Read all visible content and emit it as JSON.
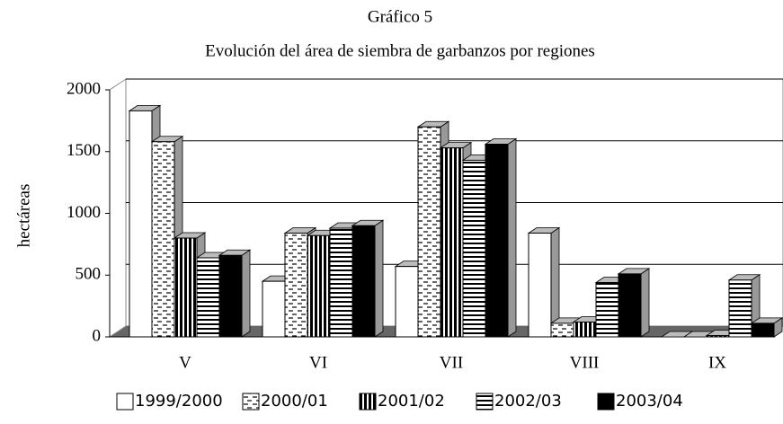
{
  "chart_data": {
    "type": "bar3d",
    "title": "Gráfico 5",
    "subtitle": "Evolución del área de siembra de garbanzos por regiones",
    "y_label": "hectáreas",
    "categories": [
      "V",
      "VI",
      "VII",
      "VIII",
      "IX"
    ],
    "series": [
      {
        "name": "1999/2000",
        "color": "#ffffff",
        "values": [
          1830,
          450,
          570,
          840,
          0
        ]
      },
      {
        "name": "2000/01",
        "color": "#ffffff",
        "values": [
          1580,
          840,
          1700,
          110,
          0
        ]
      },
      {
        "name": "2001/02",
        "color": "#000000",
        "values": [
          800,
          820,
          1530,
          120,
          10
        ]
      },
      {
        "name": "2002/03",
        "color": "#ffffff",
        "values": [
          640,
          880,
          1430,
          440,
          460
        ]
      },
      {
        "name": "2003/04",
        "color": "#000000",
        "values": [
          660,
          900,
          1560,
          510,
          110
        ]
      }
    ],
    "ylim": [
      0,
      2000
    ],
    "yticks": [
      0,
      500,
      1000,
      1500,
      2000
    ],
    "grid": true
  }
}
